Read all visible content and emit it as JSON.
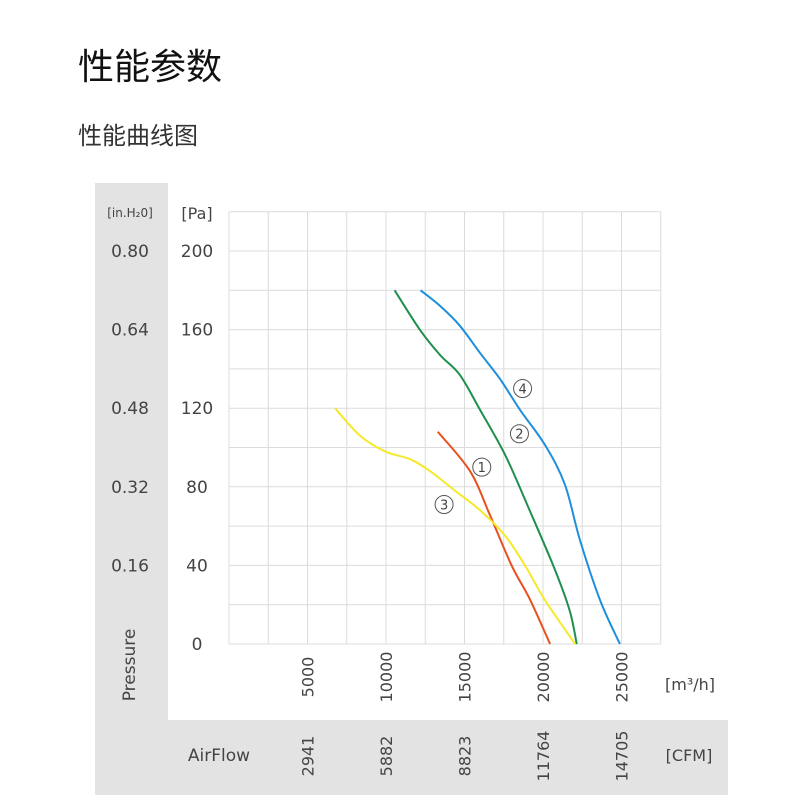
{
  "header": {
    "title": "性能参数",
    "subtitle": "性能曲线图"
  },
  "chart_data": {
    "type": "line",
    "xlabel": "AirFlow",
    "ylabel": "Pressure",
    "x_unit": "[m³/h]",
    "x_unit_secondary": "[CFM]",
    "y_unit": "[Pa]",
    "y_unit_secondary": "[in.H₂0]",
    "xlim": [
      0,
      27500
    ],
    "ylim": [
      0,
      220
    ],
    "grid": true,
    "x_ticks": [
      "5000",
      "10000",
      "15000",
      "20000",
      "25000"
    ],
    "x_tick_values": [
      5000,
      10000,
      15000,
      20000,
      25000
    ],
    "x_ticks_secondary": [
      "2941",
      "5882",
      "8823",
      "11764",
      "14705"
    ],
    "y_ticks": [
      "0",
      "40",
      "80",
      "120",
      "160",
      "200"
    ],
    "y_tick_values": [
      0,
      40,
      80,
      120,
      160,
      200
    ],
    "y_ticks_secondary": [
      "0.16",
      "0.32",
      "0.48",
      "0.64",
      "0.80"
    ],
    "series": [
      {
        "name": "①",
        "color": "#e8501e",
        "label_at": [
          16100,
          90
        ],
        "x": [
          13300,
          15350,
          16600,
          18000,
          19150,
          20450
        ],
        "y": [
          108,
          88,
          66,
          40,
          23,
          0
        ]
      },
      {
        "name": "②",
        "color": "#1f8f4e",
        "label_at": [
          18500,
          107
        ],
        "x": [
          10550,
          12150,
          13450,
          14700,
          16000,
          17600,
          19150,
          20750,
          21700,
          22150
        ],
        "y": [
          180,
          160,
          147,
          137,
          119,
          96,
          68,
          38,
          17,
          0
        ]
      },
      {
        "name": "③",
        "color": "#f5e92a",
        "label_at": [
          13700,
          71
        ],
        "x": [
          6750,
          8350,
          9950,
          11550,
          12800,
          14400,
          16000,
          17600,
          18850,
          20150,
          22050
        ],
        "y": [
          120,
          106,
          98,
          94,
          88,
          78,
          68,
          55,
          40,
          22,
          0
        ]
      },
      {
        "name": "④",
        "color": "#1e8fdc",
        "label_at": [
          18700,
          130
        ],
        "x": [
          12200,
          13450,
          14700,
          16000,
          17250,
          18550,
          20150,
          21400,
          22350,
          23650,
          24900
        ],
        "y": [
          180,
          172,
          162,
          148,
          135,
          119,
          101,
          81,
          53,
          22,
          0
        ]
      }
    ]
  }
}
